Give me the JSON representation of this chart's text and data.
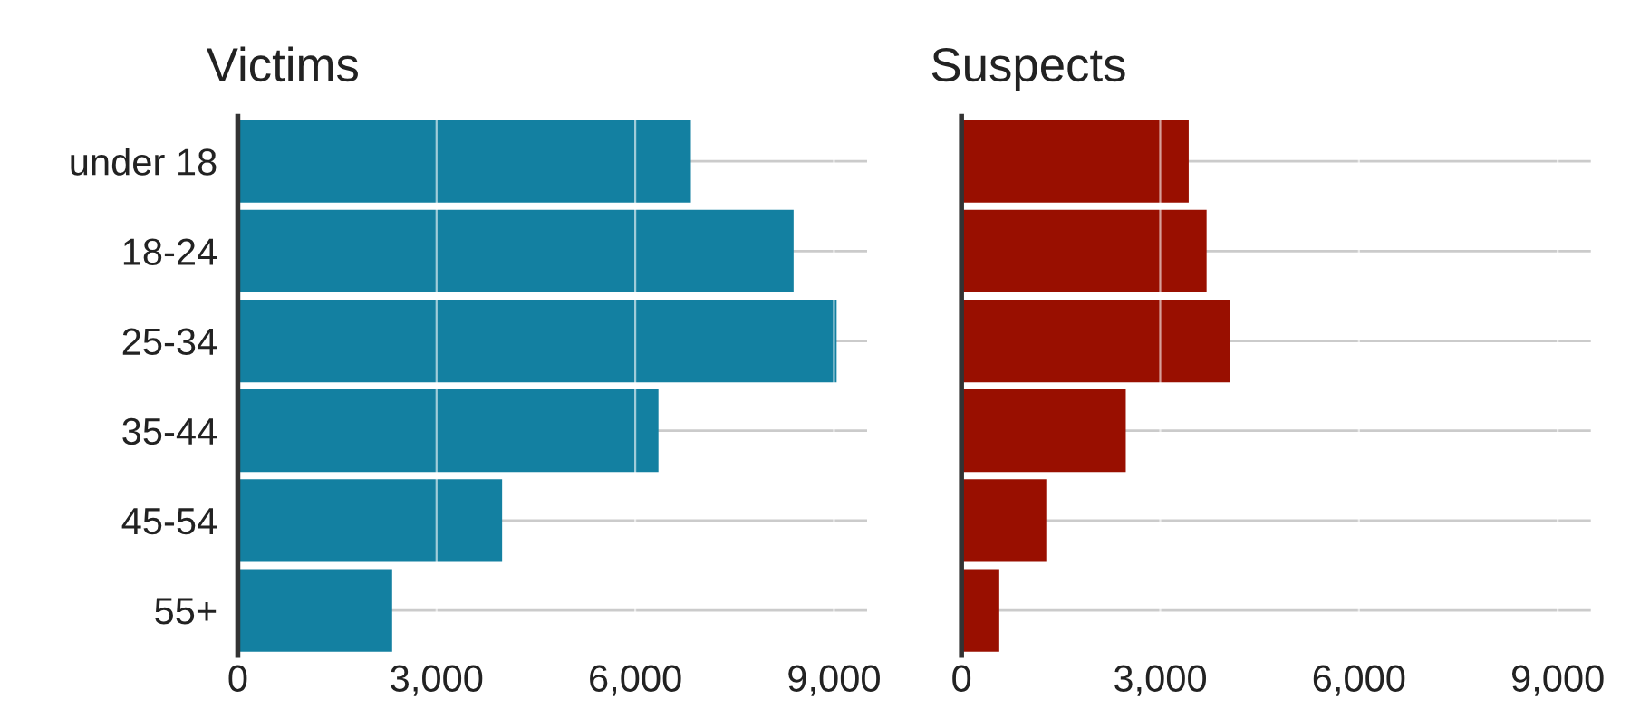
{
  "chart_data": [
    {
      "type": "bar",
      "orientation": "horizontal",
      "title": "Victims",
      "categories": [
        "under 18",
        "18-24",
        "25-34",
        "35-44",
        "45-54",
        "55+"
      ],
      "series": [
        {
          "color": "#1380a1",
          "values": [
            6840,
            8390,
            9040,
            6350,
            3990,
            2330
          ]
        }
      ],
      "xlim": [
        0,
        9500
      ],
      "xticks": [
        0,
        {
          "value": 3000,
          "label": "3,000"
        },
        {
          "value": 6000,
          "label": "6,000"
        },
        {
          "value": 9000,
          "label": "9,000"
        }
      ],
      "grid": true,
      "legend": false
    },
    {
      "type": "bar",
      "orientation": "horizontal",
      "title": "Suspects",
      "categories": [
        null,
        null,
        null,
        null,
        null,
        null
      ],
      "series": [
        {
          "color": "#990f00",
          "values": [
            3430,
            3700,
            4050,
            2480,
            1280,
            570
          ]
        }
      ],
      "xlim": [
        0,
        9500
      ],
      "xticks": [
        0,
        {
          "value": 3000,
          "label": "3,000"
        },
        {
          "value": 6000,
          "label": "6,000"
        },
        {
          "value": 9000,
          "label": "9,000"
        }
      ],
      "grid": true,
      "legend": false,
      "tick_labels": "x"
    }
  ]
}
